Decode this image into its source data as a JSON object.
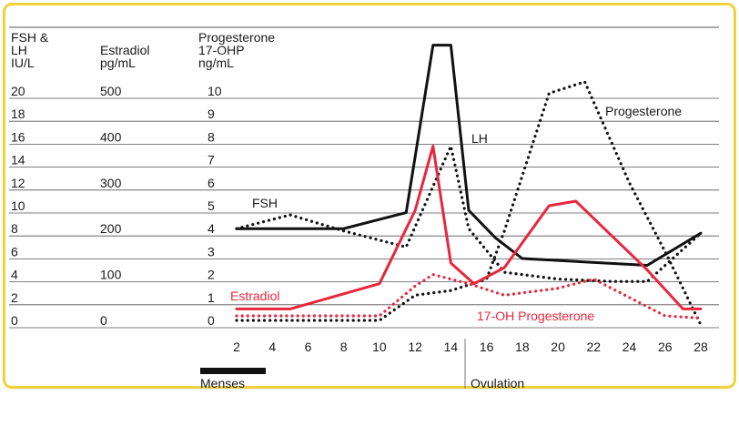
{
  "colors": {
    "frame": "#f1d23d",
    "black": "#111111",
    "red": "#e8273c",
    "grid": "#555555"
  },
  "chart_data": {
    "type": "line",
    "headers": {
      "col1": [
        "FSH &",
        "LH",
        "IU/L"
      ],
      "col2": [
        "Estradiol",
        "pg/mL"
      ],
      "col3": [
        "Progesterone",
        "17-OHP",
        "ng/mL"
      ]
    },
    "y_ticks": {
      "fsh_lh": [
        "20",
        "18",
        "16",
        "14",
        "12",
        "10",
        "8",
        "6",
        "4",
        "2",
        "0"
      ],
      "estradiol": [
        "500",
        "",
        "400",
        "",
        "300",
        "",
        "200",
        "",
        "100",
        "",
        "0"
      ],
      "progesterone": [
        "10",
        "9",
        "8",
        "7",
        "6",
        "5",
        "4",
        "3",
        "2",
        "1",
        "0"
      ]
    },
    "x_ticks": [
      2,
      4,
      6,
      8,
      10,
      12,
      14,
      16,
      18,
      20,
      22,
      24,
      26,
      28
    ],
    "xlim": [
      2,
      28
    ],
    "ylim_progesterone": [
      0,
      10
    ],
    "phases": [
      "Menses",
      "Ovulation"
    ],
    "series": [
      {
        "name": "FSH",
        "axis": "progesterone",
        "style": "dotted",
        "color": "#111111",
        "points": [
          [
            2,
            4.0
          ],
          [
            5,
            4.6
          ],
          [
            8,
            3.9
          ],
          [
            11.5,
            3.2
          ],
          [
            14,
            7.6
          ],
          [
            15,
            4.0
          ],
          [
            17,
            2.1
          ],
          [
            20,
            1.8
          ],
          [
            23,
            1.7
          ],
          [
            25,
            1.7
          ],
          [
            28,
            3.8
          ]
        ]
      },
      {
        "name": "LH",
        "axis": "progesterone",
        "style": "solid",
        "color": "#111111",
        "points": [
          [
            2,
            4.0
          ],
          [
            8,
            4.0
          ],
          [
            10,
            4.4
          ],
          [
            11.5,
            4.7
          ],
          [
            13,
            12.0
          ],
          [
            14,
            12.0
          ],
          [
            15,
            4.8
          ],
          [
            16.5,
            3.6
          ],
          [
            18,
            2.7
          ],
          [
            25,
            2.4
          ],
          [
            28,
            3.8
          ]
        ]
      },
      {
        "name": "Progesterone",
        "axis": "progesterone",
        "style": "dotted",
        "color": "#111111",
        "points": [
          [
            2,
            0.0
          ],
          [
            10,
            0.0
          ],
          [
            12,
            1.1
          ],
          [
            14,
            1.3
          ],
          [
            16,
            1.8
          ],
          [
            17,
            3.9
          ],
          [
            19.5,
            9.9
          ],
          [
            21.5,
            10.4
          ],
          [
            24,
            6.0
          ],
          [
            26,
            3.0
          ],
          [
            28,
            -0.2
          ]
        ]
      },
      {
        "name": "Estradiol",
        "axis": "progesterone",
        "style": "solid",
        "color": "#e8273c",
        "points": [
          [
            2,
            0.5
          ],
          [
            5,
            0.5
          ],
          [
            10,
            1.6
          ],
          [
            12,
            4.8
          ],
          [
            13,
            7.6
          ],
          [
            14,
            2.5
          ],
          [
            15.3,
            1.6
          ],
          [
            17,
            2.3
          ],
          [
            19.5,
            5.0
          ],
          [
            21,
            5.2
          ],
          [
            25,
            2.2
          ],
          [
            27,
            0.5
          ],
          [
            28,
            0.5
          ]
        ]
      },
      {
        "name": "17-OH Progesterone",
        "axis": "progesterone",
        "style": "dotted",
        "color": "#e8273c",
        "points": [
          [
            2,
            0.2
          ],
          [
            10,
            0.2
          ],
          [
            12,
            1.5
          ],
          [
            13,
            2.0
          ],
          [
            15,
            1.6
          ],
          [
            17,
            1.1
          ],
          [
            20,
            1.4
          ],
          [
            22,
            1.8
          ],
          [
            24,
            1.0
          ],
          [
            26,
            0.2
          ],
          [
            28,
            0.1
          ]
        ]
      }
    ],
    "labels": {
      "fsh": "FSH",
      "lh": "LH",
      "progesterone": "Progesterone",
      "estradiol": "Estradiol",
      "ohp": "17-OH Progesterone"
    }
  }
}
